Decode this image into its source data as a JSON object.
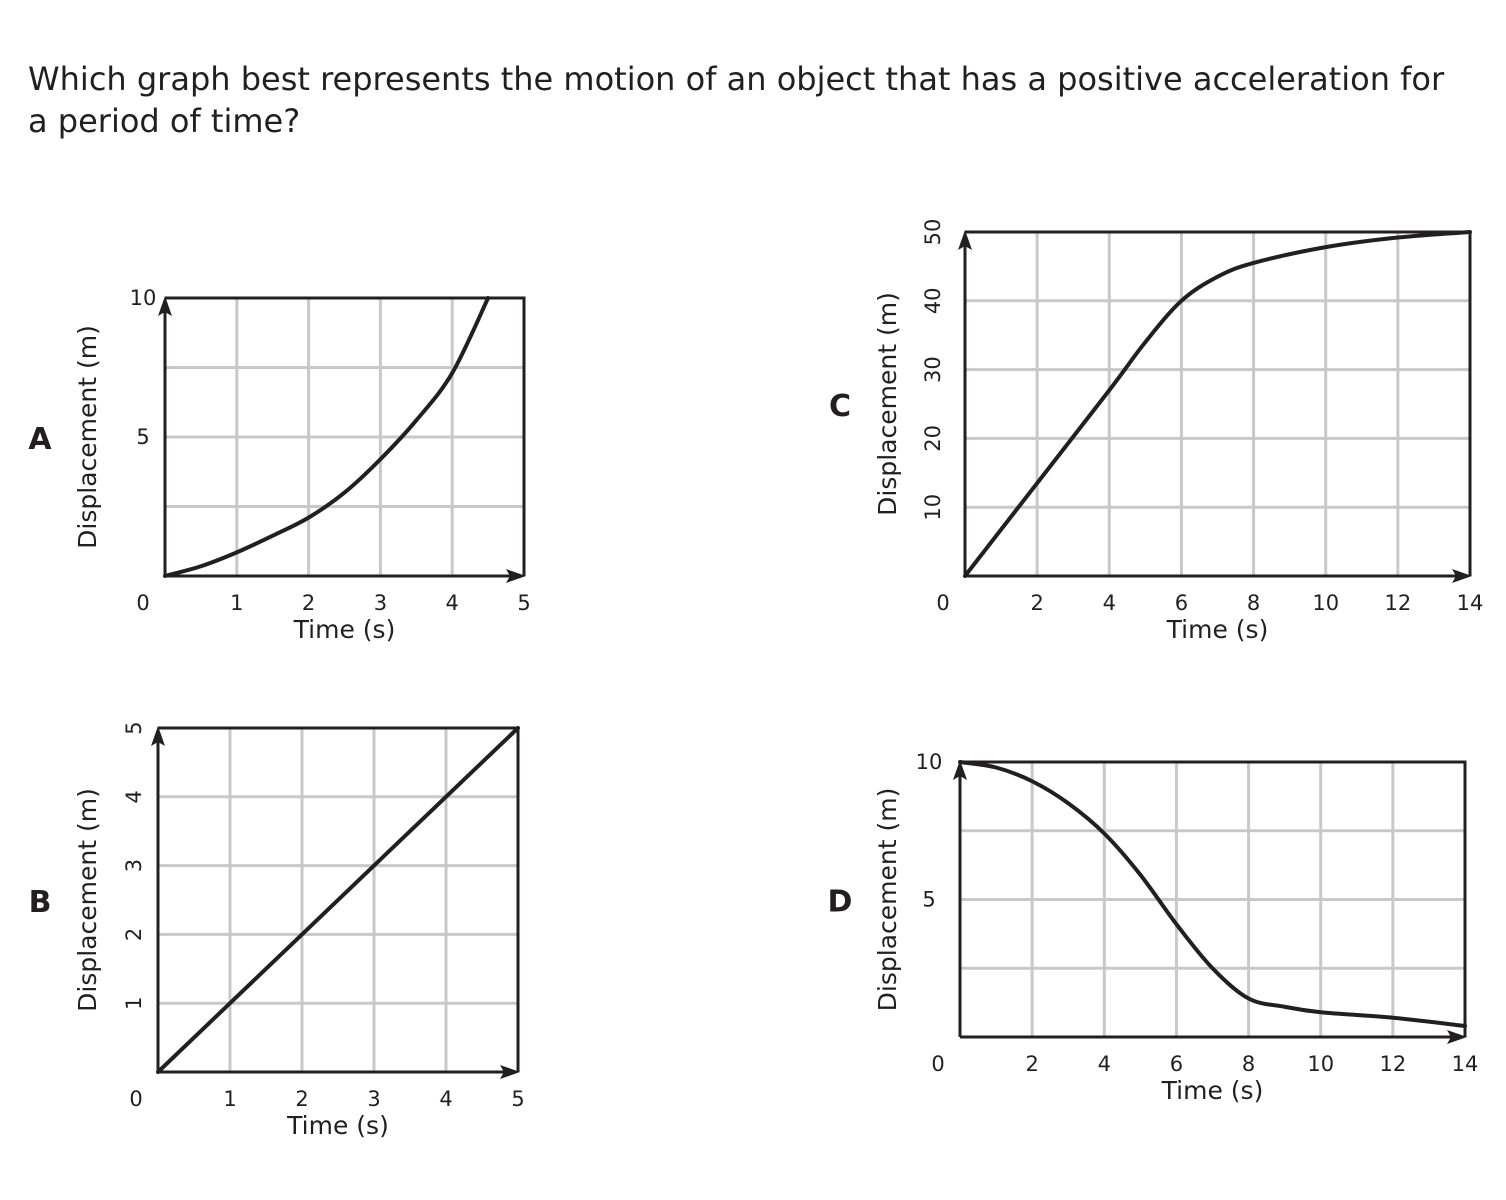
{
  "question": "Which graph best represents the motion of an object that has a positive acceleration for a period of time?",
  "colors": {
    "grid": "#c8c8c8",
    "ink": "#231f20",
    "background": "#ffffff"
  },
  "chart_data": [
    {
      "id": "A",
      "option_letter": "A",
      "type": "line",
      "xlabel": "Time (s)",
      "ylabel": "Displacement (m)",
      "xlim": [
        0,
        5
      ],
      "ylim": [
        0,
        10
      ],
      "x_tick_labels": [
        "0",
        "1",
        "2",
        "3",
        "4",
        "5"
      ],
      "y_tick_labels": [
        "10",
        "5"
      ],
      "grid": true,
      "series": [
        {
          "x": [
            0,
            0.5,
            1,
            1.5,
            2,
            2.5,
            3,
            3.5,
            4,
            4.5
          ],
          "y": [
            0,
            0.35,
            0.85,
            1.45,
            2.1,
            3.0,
            4.2,
            5.6,
            7.3,
            10
          ]
        }
      ]
    },
    {
      "id": "B",
      "option_letter": "B",
      "type": "line",
      "xlabel": "Time (s)",
      "ylabel": "Displacement (m)",
      "xlim": [
        0,
        5
      ],
      "ylim": [
        0,
        5
      ],
      "x_tick_labels": [
        "0",
        "1",
        "2",
        "3",
        "4",
        "5"
      ],
      "y_tick_labels": [
        "5",
        "4",
        "3",
        "2",
        "1"
      ],
      "grid": true,
      "series": [
        {
          "x": [
            0,
            1,
            2,
            3,
            4,
            5
          ],
          "y": [
            0,
            1,
            2,
            3,
            4,
            5
          ]
        }
      ]
    },
    {
      "id": "C",
      "option_letter": "C",
      "type": "line",
      "xlabel": "Time (s)",
      "ylabel": "Displacement (m)",
      "xlim": [
        0,
        14
      ],
      "ylim": [
        0,
        50
      ],
      "x_tick_labels": [
        "0",
        "2",
        "4",
        "6",
        "8",
        "10",
        "12",
        "14"
      ],
      "y_tick_labels": [
        "50",
        "40",
        "30",
        "20",
        "10"
      ],
      "grid": true,
      "series": [
        {
          "x": [
            0,
            2,
            4,
            5,
            6,
            7,
            8,
            10,
            12,
            14
          ],
          "y": [
            0,
            13.5,
            27,
            34,
            40,
            43.5,
            45.5,
            47.8,
            49.2,
            50
          ]
        }
      ]
    },
    {
      "id": "D",
      "option_letter": "D",
      "type": "line",
      "xlabel": "Time (s)",
      "ylabel": "Displacement (m)",
      "xlim": [
        0,
        14
      ],
      "ylim": [
        0,
        10
      ],
      "x_tick_labels": [
        "0",
        "2",
        "4",
        "6",
        "8",
        "10",
        "12",
        "14"
      ],
      "y_tick_labels": [
        "10",
        "5"
      ],
      "grid": true,
      "series": [
        {
          "x": [
            0,
            1,
            2,
            3,
            4,
            5,
            6,
            7,
            8,
            9,
            10,
            12,
            14
          ],
          "y": [
            10,
            9.8,
            9.3,
            8.5,
            7.4,
            5.9,
            4.1,
            2.5,
            1.4,
            1.1,
            0.9,
            0.7,
            0.4
          ]
        }
      ]
    }
  ]
}
